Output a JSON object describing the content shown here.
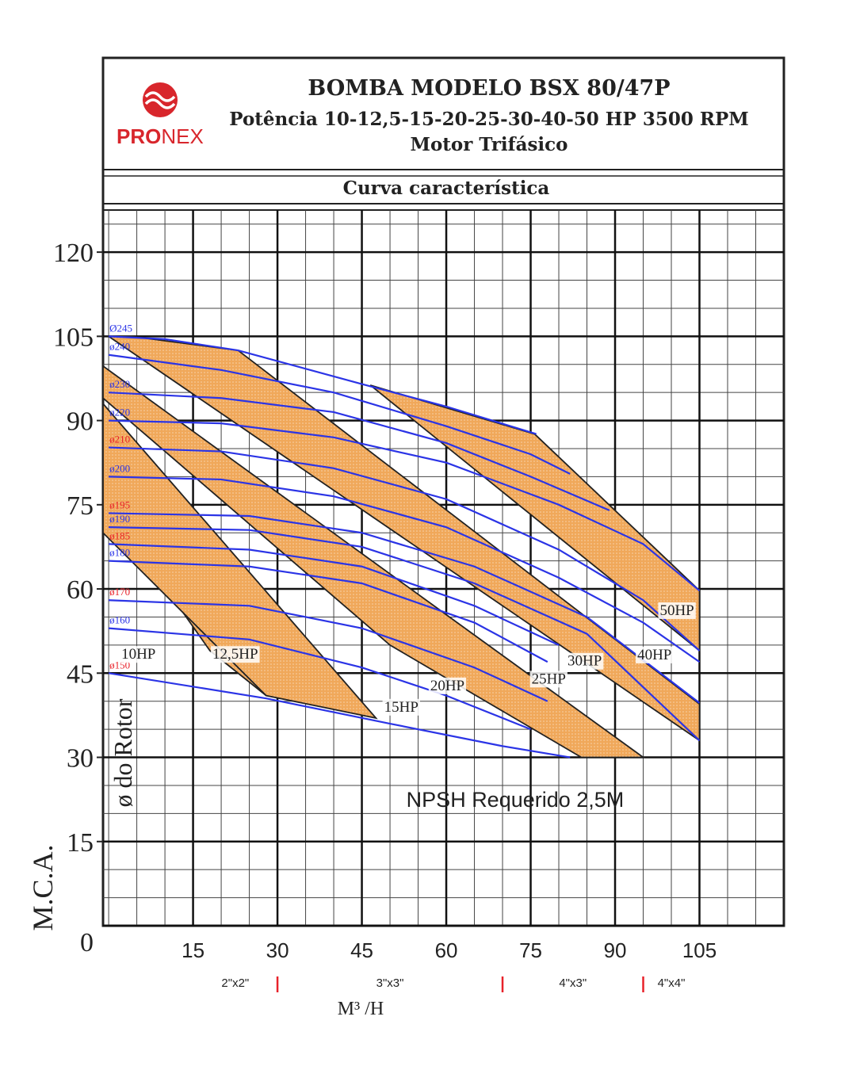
{
  "header": {
    "logo_parts": [
      "PRO",
      "NEX"
    ],
    "title": "BOMBA MODELO BSX 80/47P",
    "subtitle": "Potência 10-12,5-15-20-25-30-40-50 HP 3500 RPM",
    "subtitle2": "Motor Trifásico",
    "section": "Curva característica"
  },
  "chart_data": {
    "type": "pump_curve",
    "x_label": "M³ /H",
    "y_label": "M.C.A.",
    "curve_axis_label": "ø do Rotor",
    "note": "NPSH Requerido 2,5M",
    "xlim": [
      -1,
      120
    ],
    "ylim": [
      0,
      127.5
    ],
    "xticks": [
      15,
      30,
      45,
      60,
      75,
      90,
      105
    ],
    "yticks": [
      0,
      15,
      30,
      45,
      60,
      75,
      90,
      105,
      120
    ],
    "grid": true,
    "minor_grid": 5,
    "line_color": "#2b34e6",
    "band_color": "#f0a85a",
    "series": [
      {
        "name": "Ø245",
        "color": "#2b34e6",
        "x": [
          0,
          10,
          23,
          45,
          60,
          76
        ],
        "values": [
          105,
          104.5,
          102.5,
          96.5,
          92.5,
          87.6
        ]
      },
      {
        "name": "ø240",
        "color": "#2b34e6",
        "x": [
          0,
          20,
          40,
          60,
          75,
          82
        ],
        "values": [
          101.7,
          99,
          95,
          89,
          84,
          80.5
        ]
      },
      {
        "name": "ø230",
        "color": "#2b34e6",
        "x": [
          0,
          20,
          40,
          60,
          75,
          89
        ],
        "values": [
          95,
          94,
          91.5,
          86,
          80,
          74
        ]
      },
      {
        "name": "ø220",
        "color": "#2b34e6",
        "x": [
          0,
          20,
          40,
          60,
          80,
          95,
          105
        ],
        "values": [
          90,
          89.5,
          87,
          82.5,
          75,
          68,
          59.7
        ]
      },
      {
        "name": "ø210",
        "color": "#e8222a",
        "x": [
          0,
          20,
          40,
          60,
          80,
          95,
          105
        ],
        "values": [
          85.2,
          84.5,
          81.5,
          76,
          67,
          58,
          49
        ]
      },
      {
        "name": "ø200",
        "color": "#2b34e6",
        "x": [
          0,
          20,
          40,
          60,
          80,
          95,
          105
        ],
        "values": [
          80,
          79.5,
          76.5,
          71,
          62,
          54,
          47
        ]
      },
      {
        "name": "ø195",
        "color": "#e8222a",
        "x": [
          0,
          25,
          45,
          65,
          85,
          105
        ],
        "values": [
          73.5,
          73,
          70,
          64,
          55,
          39.7
        ]
      },
      {
        "name": "ø190",
        "color": "#2b34e6",
        "x": [
          0,
          25,
          45,
          65,
          85,
          105
        ],
        "values": [
          71,
          70.5,
          67.5,
          61,
          52,
          33
        ]
      },
      {
        "name": "ø185",
        "color": "#e8222a",
        "x": [
          0,
          25,
          45,
          65,
          80
        ],
        "values": [
          68,
          67,
          64,
          57,
          50
        ]
      },
      {
        "name": "ø180",
        "color": "#2b34e6",
        "x": [
          0,
          25,
          45,
          65,
          78
        ],
        "values": [
          65,
          64,
          61,
          54,
          47
        ]
      },
      {
        "name": "ø170",
        "color": "#e8222a",
        "x": [
          0,
          25,
          45,
          65,
          78
        ],
        "values": [
          58,
          57,
          53,
          46,
          40
        ]
      },
      {
        "name": "ø160",
        "color": "#2b34e6",
        "x": [
          0,
          25,
          45,
          60,
          75
        ],
        "values": [
          53,
          51,
          46,
          41,
          35
        ]
      },
      {
        "name": "ø150",
        "color": "#e8222a",
        "x": [
          0,
          28,
          50,
          70,
          82
        ],
        "values": [
          45,
          40.5,
          36,
          32,
          30
        ]
      }
    ],
    "bands": [
      {
        "x": [
          -1,
          28,
          18,
          -1
        ],
        "values": [
          84.7,
          41,
          49,
          76
        ]
      },
      {
        "x": [
          -1,
          47.5,
          28,
          -1
        ],
        "values": [
          93,
          37,
          41,
          70
        ]
      },
      {
        "x": [
          -1,
          95,
          84,
          50,
          -1
        ],
        "values": [
          99.7,
          30,
          30,
          50,
          94
        ]
      },
      {
        "x": [
          4,
          23,
          105,
          105,
          0
        ],
        "values": [
          105,
          102.5,
          39.5,
          33,
          105
        ]
      },
      {
        "x": [
          46.5,
          75.7,
          105,
          105
        ],
        "values": [
          96.3,
          87.6,
          59.7,
          49
        ]
      }
    ],
    "annotations": [
      {
        "text": "10HP",
        "x": 5.3,
        "y": 48.4
      },
      {
        "text": "12,5HP",
        "x": 22.5,
        "y": 48.4
      },
      {
        "text": "15HP",
        "x": 52,
        "y": 39
      },
      {
        "text": "20HP",
        "x": 60.2,
        "y": 42.8
      },
      {
        "text": "25HP",
        "x": 78.2,
        "y": 44
      },
      {
        "text": "30HP",
        "x": 84.6,
        "y": 47.2
      },
      {
        "text": "40HP",
        "x": 97,
        "y": 48.3
      },
      {
        "text": "50HP",
        "x": 101,
        "y": 56.2
      }
    ],
    "pipe_sizes": {
      "labels": [
        "2\"x2\"",
        "3\"x3\"",
        "4\"x3\"",
        "4\"x4\""
      ],
      "boundaries": [
        30,
        70,
        95
      ],
      "marker_color": "#e8222a"
    }
  }
}
